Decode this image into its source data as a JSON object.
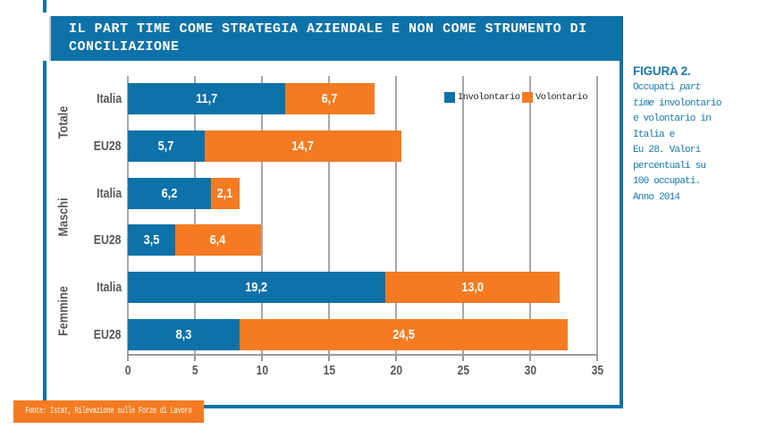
{
  "colors": {
    "blue": "#0e72a8",
    "orange": "#f47b21",
    "caption_blue": "#1679ac",
    "grid_gray": "#a8a8a8",
    "text_gray": "#565759"
  },
  "header": {
    "title": "IL PART TIME COME STRATEGIA AZIENDALE E NON COME STRUMENTO DI\nCONCILIAZIONE"
  },
  "chart_data": {
    "type": "bar",
    "orientation": "horizontal",
    "stacked": true,
    "xlim": [
      0,
      35
    ],
    "xticks": [
      0,
      5,
      10,
      15,
      20,
      25,
      30,
      35
    ],
    "grid": true,
    "legend_position": "top-right-inside",
    "series": [
      {
        "name": "Involontario",
        "color": "#0e72a8"
      },
      {
        "name": "Volontario",
        "color": "#f47b21"
      }
    ],
    "groups": [
      "Totale",
      "Maschi",
      "Femmine"
    ],
    "rows": [
      {
        "group": "Totale",
        "label": "Italia",
        "involontario": 11.7,
        "volontario": 6.7
      },
      {
        "group": "Totale",
        "label": "EU28",
        "involontario": 5.7,
        "volontario": 14.7
      },
      {
        "group": "Maschi",
        "label": "Italia",
        "involontario": 6.2,
        "volontario": 2.1
      },
      {
        "group": "Maschi",
        "label": "EU28",
        "involontario": 3.5,
        "volontario": 6.4
      },
      {
        "group": "Femmine",
        "label": "Italia",
        "involontario": 19.2,
        "volontario": 13.0
      },
      {
        "group": "Femmine",
        "label": "EU28",
        "involontario": 8.3,
        "volontario": 24.5
      }
    ]
  },
  "figure_note": {
    "title": "FIGURA 2.",
    "text_before": "Occupati ",
    "text_italic": "part\ntime",
    "text_after": " involontario\ne volontario in\nItalia e\nEu 28. Valori\npercentuali su\n100 occupati.\nAnno 2014"
  },
  "footer": {
    "source": "Fonte: Istat, Rilevazione sulle Forze di Lavoro"
  }
}
